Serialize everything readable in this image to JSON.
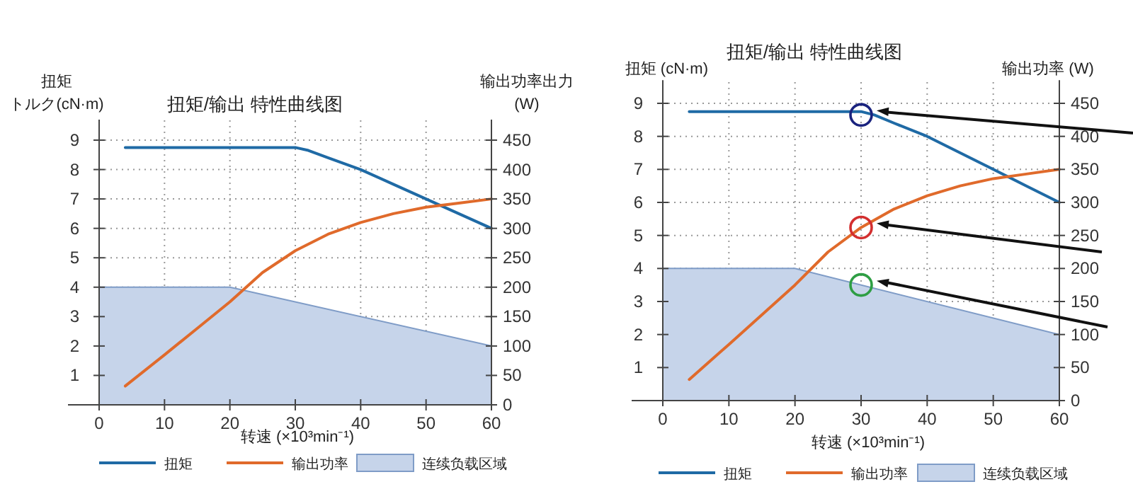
{
  "chart_data": [
    {
      "type": "line",
      "title": "扭矩/输出 特性曲线图",
      "xlabel": "转速 (×10³min⁻¹)",
      "ylabel": "扭矩トルク(cN·m)",
      "y2label": "输出功率出力(W)",
      "xlim": [
        0,
        60
      ],
      "xticks": [
        0,
        10,
        20,
        30,
        40,
        50,
        60
      ],
      "ylim": [
        0,
        9.7
      ],
      "yticks": [
        1,
        2,
        3,
        4,
        5,
        6,
        7,
        8,
        9
      ],
      "y2lim": [
        0,
        485
      ],
      "y2ticks": [
        0,
        50,
        100,
        150,
        200,
        250,
        300,
        350,
        400,
        450
      ],
      "grid": true,
      "legend": "bottom",
      "series": [
        {
          "name": "扭矩",
          "type": "line",
          "color": "#1f6aa5",
          "x": [
            4,
            30,
            32,
            35,
            40,
            45,
            50,
            55,
            60
          ],
          "values": [
            8.75,
            8.75,
            8.65,
            8.4,
            8.0,
            7.5,
            7.0,
            6.5,
            6.0
          ]
        },
        {
          "name": "输出功率",
          "type": "line",
          "axis": "y2",
          "color": "#e06a2b",
          "x": [
            4,
            10,
            15,
            20,
            25,
            30,
            35,
            40,
            45,
            50,
            55,
            60
          ],
          "values": [
            32,
            85,
            130,
            175,
            225,
            262,
            290,
            310,
            325,
            336,
            343,
            350
          ]
        },
        {
          "name": "连续负载区域",
          "type": "area",
          "color": "#c6d4ea",
          "x": [
            0,
            20,
            60
          ],
          "values": [
            4,
            4,
            2
          ]
        }
      ]
    },
    {
      "type": "line",
      "title": "扭矩/输出 特性曲线图",
      "xlabel": "转速 (×10³min⁻¹)",
      "ylabel": "扭矩 (cN·m)",
      "y2label": "输出功率 (W)",
      "xlim": [
        0,
        60
      ],
      "xticks": [
        0,
        10,
        20,
        30,
        40,
        50,
        60
      ],
      "ylim": [
        0,
        9.7
      ],
      "yticks": [
        1,
        2,
        3,
        4,
        5,
        6,
        7,
        8,
        9
      ],
      "y2lim": [
        0,
        485
      ],
      "y2ticks": [
        0,
        50,
        100,
        150,
        200,
        250,
        300,
        350,
        400,
        450
      ],
      "grid": true,
      "legend": "bottom",
      "series": [
        {
          "name": "扭矩",
          "type": "line",
          "color": "#1f6aa5",
          "x": [
            4,
            30,
            32,
            35,
            40,
            45,
            50,
            55,
            60
          ],
          "values": [
            8.75,
            8.75,
            8.65,
            8.4,
            8.0,
            7.5,
            7.0,
            6.5,
            6.0
          ]
        },
        {
          "name": "输出功率",
          "type": "line",
          "axis": "y2",
          "color": "#e06a2b",
          "x": [
            4,
            10,
            15,
            20,
            25,
            30,
            35,
            40,
            45,
            50,
            55,
            60
          ],
          "values": [
            32,
            85,
            130,
            175,
            225,
            262,
            290,
            310,
            325,
            336,
            343,
            350
          ]
        },
        {
          "name": "连续负载区域",
          "type": "area",
          "color": "#c6d4ea",
          "x": [
            0,
            20,
            60
          ],
          "values": [
            4,
            4,
            2
          ]
        }
      ]
    }
  ]
}
